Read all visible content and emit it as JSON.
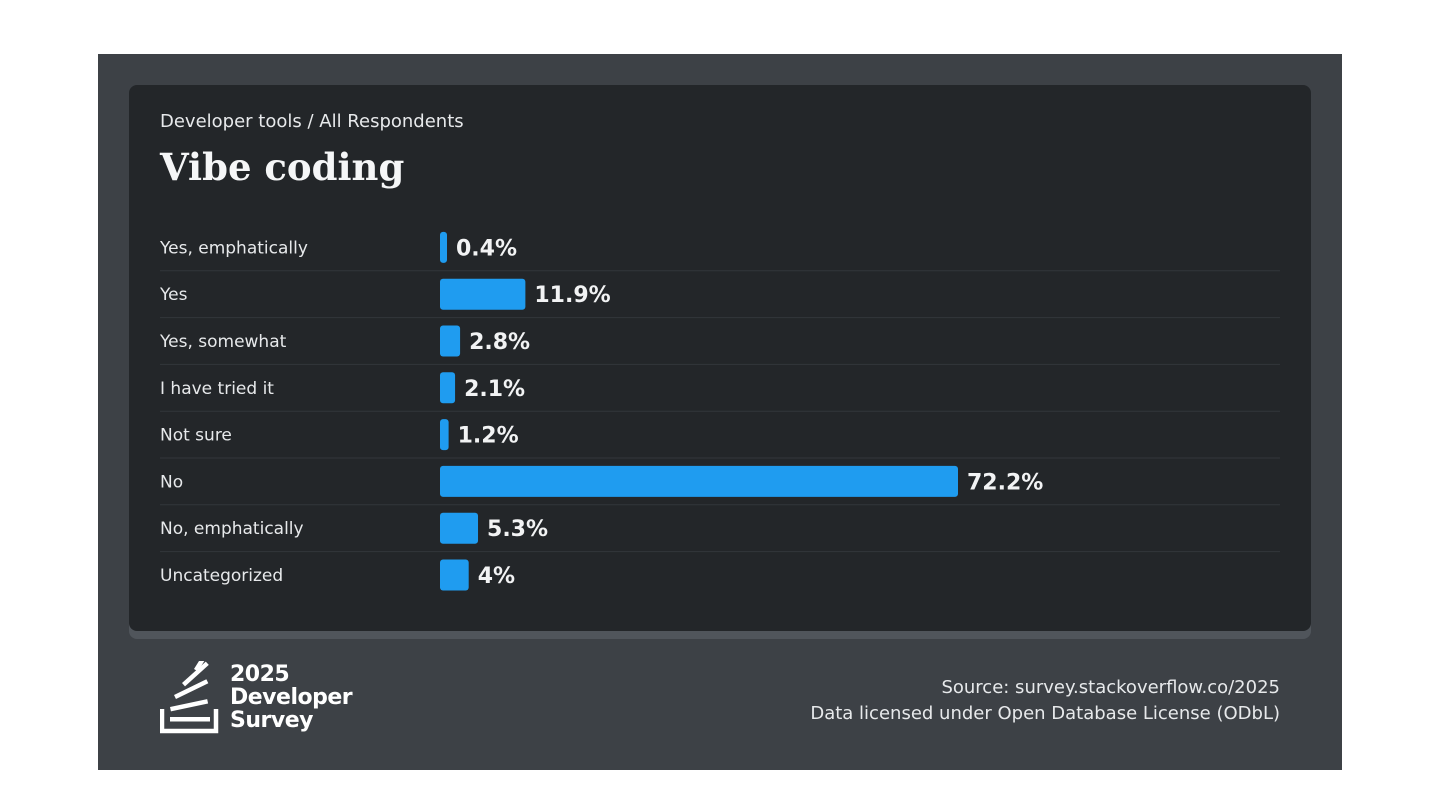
{
  "header": {
    "subtitle": "Developer tools / All Respondents",
    "title": "Vibe coding"
  },
  "chart_data": {
    "type": "bar",
    "orientation": "horizontal",
    "categories": [
      "Yes, emphatically",
      "Yes",
      "Yes, somewhat",
      "I have tried it",
      "Not sure",
      "No",
      "No, emphatically",
      "Uncategorized"
    ],
    "values": [
      0.4,
      11.9,
      2.8,
      2.1,
      1.2,
      72.2,
      5.3,
      4
    ],
    "value_labels": [
      "0.4%",
      "11.9%",
      "2.8%",
      "2.1%",
      "1.2%",
      "72.2%",
      "5.3%",
      "4%"
    ],
    "unit": "%",
    "bar_color": "#1f9cf0",
    "grid": false,
    "legend": "none"
  },
  "footer": {
    "logo": {
      "icon": "stack-overflow-icon",
      "year": "2025",
      "line1": "Developer",
      "line2": "Survey"
    },
    "source": "Source: survey.stackoverflow.co/2025",
    "license": "Data licensed under Open Database License (ODbL)"
  },
  "colors": {
    "frame_bg": "#3d4146",
    "card_bg": "#232629",
    "bar": "#1f9cf0",
    "text": "#e7e9eb"
  }
}
